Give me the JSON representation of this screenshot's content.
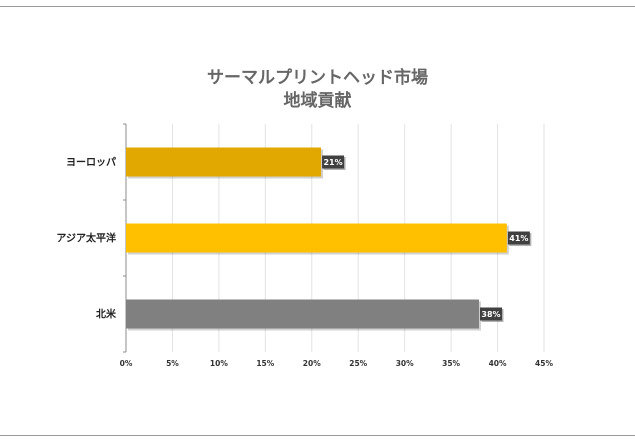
{
  "chart_data": {
    "type": "bar",
    "orientation": "horizontal",
    "title": [
      "サーマルプリントヘッド市場",
      "地域貢献"
    ],
    "categories": [
      "ヨーロッパ",
      "アジア太平洋",
      "北米"
    ],
    "values": [
      21,
      41,
      38
    ],
    "data_labels": [
      "21%",
      "41%",
      "38%"
    ],
    "colors": [
      "#E0A800",
      "#FFC000",
      "#808080"
    ],
    "xlim": [
      0,
      45
    ],
    "xticks": [
      0,
      5,
      10,
      15,
      20,
      25,
      30,
      35,
      40,
      45
    ],
    "xtick_labels": [
      "0%",
      "5%",
      "10%",
      "15%",
      "20%",
      "25%",
      "30%",
      "35%",
      "40%",
      "45%"
    ],
    "grid": true,
    "legend": "none"
  }
}
